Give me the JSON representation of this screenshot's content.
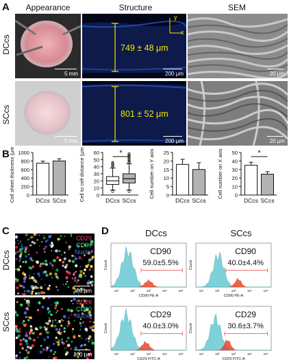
{
  "panels": {
    "a": "A",
    "b": "B",
    "c": "C",
    "d": "D"
  },
  "panel_a": {
    "columns": [
      "Appearance",
      "Structure",
      "SEM"
    ],
    "rows": [
      "DCcs",
      "SCcs"
    ],
    "thickness": [
      "749 ± 48 μm",
      "801 ± 52 μm"
    ],
    "axis_labels": {
      "y": "y",
      "x": "x"
    },
    "scales": {
      "photo": "5 mm",
      "structure": "200 μm",
      "sem": "20 μm"
    }
  },
  "panel_b_charts": [
    {
      "ylabel": "Cell sheet thickness (μm)",
      "categories": [
        "DCcs",
        "SCcs"
      ]
    },
    {
      "ylabel": "Cell to cell distance (μm)",
      "categories": [
        "DCcs",
        "SCcs"
      ],
      "sig": "*"
    },
    {
      "ylabel": "Cell number on Y axis",
      "categories": [
        "DCcs",
        "SCcs"
      ]
    },
    {
      "ylabel": "Cell number on X axis",
      "categories": [
        "DCcs",
        "SCcs"
      ],
      "sig": "*"
    }
  ],
  "chart_data": [
    {
      "type": "bar",
      "categories": [
        "DCcs",
        "SCcs"
      ],
      "values": [
        749,
        801
      ],
      "errors": [
        48,
        52
      ],
      "ylabel": "Cell sheet thickness (μm)",
      "ylim": [
        0,
        1000
      ],
      "yticks": [
        0,
        200,
        400,
        600,
        800,
        1000
      ],
      "colors": [
        "#ffffff",
        "#b3b3b3"
      ]
    },
    {
      "type": "box",
      "categories": [
        "DCcs",
        "SCcs"
      ],
      "boxes": [
        {
          "min": 7,
          "q1": 15,
          "median": 20,
          "q3": 26,
          "max": 38
        },
        {
          "min": 7,
          "q1": 17,
          "median": 23,
          "q3": 30,
          "max": 44
        }
      ],
      "ylabel": "Cell to cell distance (μm)",
      "ylim": [
        0,
        60
      ],
      "yticks": [
        0,
        10,
        20,
        30,
        40,
        50,
        60
      ],
      "significance": "*"
    },
    {
      "type": "bar",
      "categories": [
        "DCcs",
        "SCcs"
      ],
      "values": [
        18,
        15
      ],
      "errors": [
        3,
        4
      ],
      "ylabel": "Cell number on Y axis",
      "ylim": [
        0,
        25
      ],
      "yticks": [
        0,
        5,
        10,
        15,
        20,
        25
      ],
      "colors": [
        "#ffffff",
        "#b3b3b3"
      ]
    },
    {
      "type": "bar",
      "categories": [
        "DCcs",
        "SCcs"
      ],
      "values": [
        35,
        24.5
      ],
      "errors": [
        3.5,
        3
      ],
      "ylabel": "Cell number on X axis",
      "ylim": [
        0,
        50
      ],
      "yticks": [
        0,
        10,
        20,
        30,
        40,
        50
      ],
      "colors": [
        "#ffffff",
        "#b3b3b3"
      ],
      "significance": "*"
    }
  ],
  "panel_c": {
    "rows": [
      "DCcs",
      "SCcs"
    ],
    "legend": [
      {
        "label": "CD29",
        "color": "#ff3b6b"
      },
      {
        "label": "CD90",
        "color": "#2ee66a"
      },
      {
        "label": "Nuclei",
        "color": "#3a7bff"
      }
    ],
    "scale": "200 μm"
  },
  "panel_d": {
    "columns": [
      "DCcs",
      "SCcs"
    ],
    "plots": [
      {
        "marker": "CD90",
        "value": "59.0±5.5%",
        "xlabel": "CD90 PE-A"
      },
      {
        "marker": "CD90",
        "value": "40.0±4.4%",
        "xlabel": "CD90 PE-A"
      },
      {
        "marker": "CD29",
        "value": "40.0±3.0%",
        "xlabel": "CD29 FITC-A"
      },
      {
        "marker": "CD29",
        "value": "30.6±3.7%",
        "xlabel": "CD29 FITC-A"
      }
    ],
    "xticks": [
      "10¹",
      "10²",
      "10³",
      "10⁴",
      "10⁵"
    ],
    "ylabel": "Count",
    "colors": {
      "control": "#5fc6d0",
      "positive": "#e8452c",
      "gate": "#e87070"
    }
  }
}
